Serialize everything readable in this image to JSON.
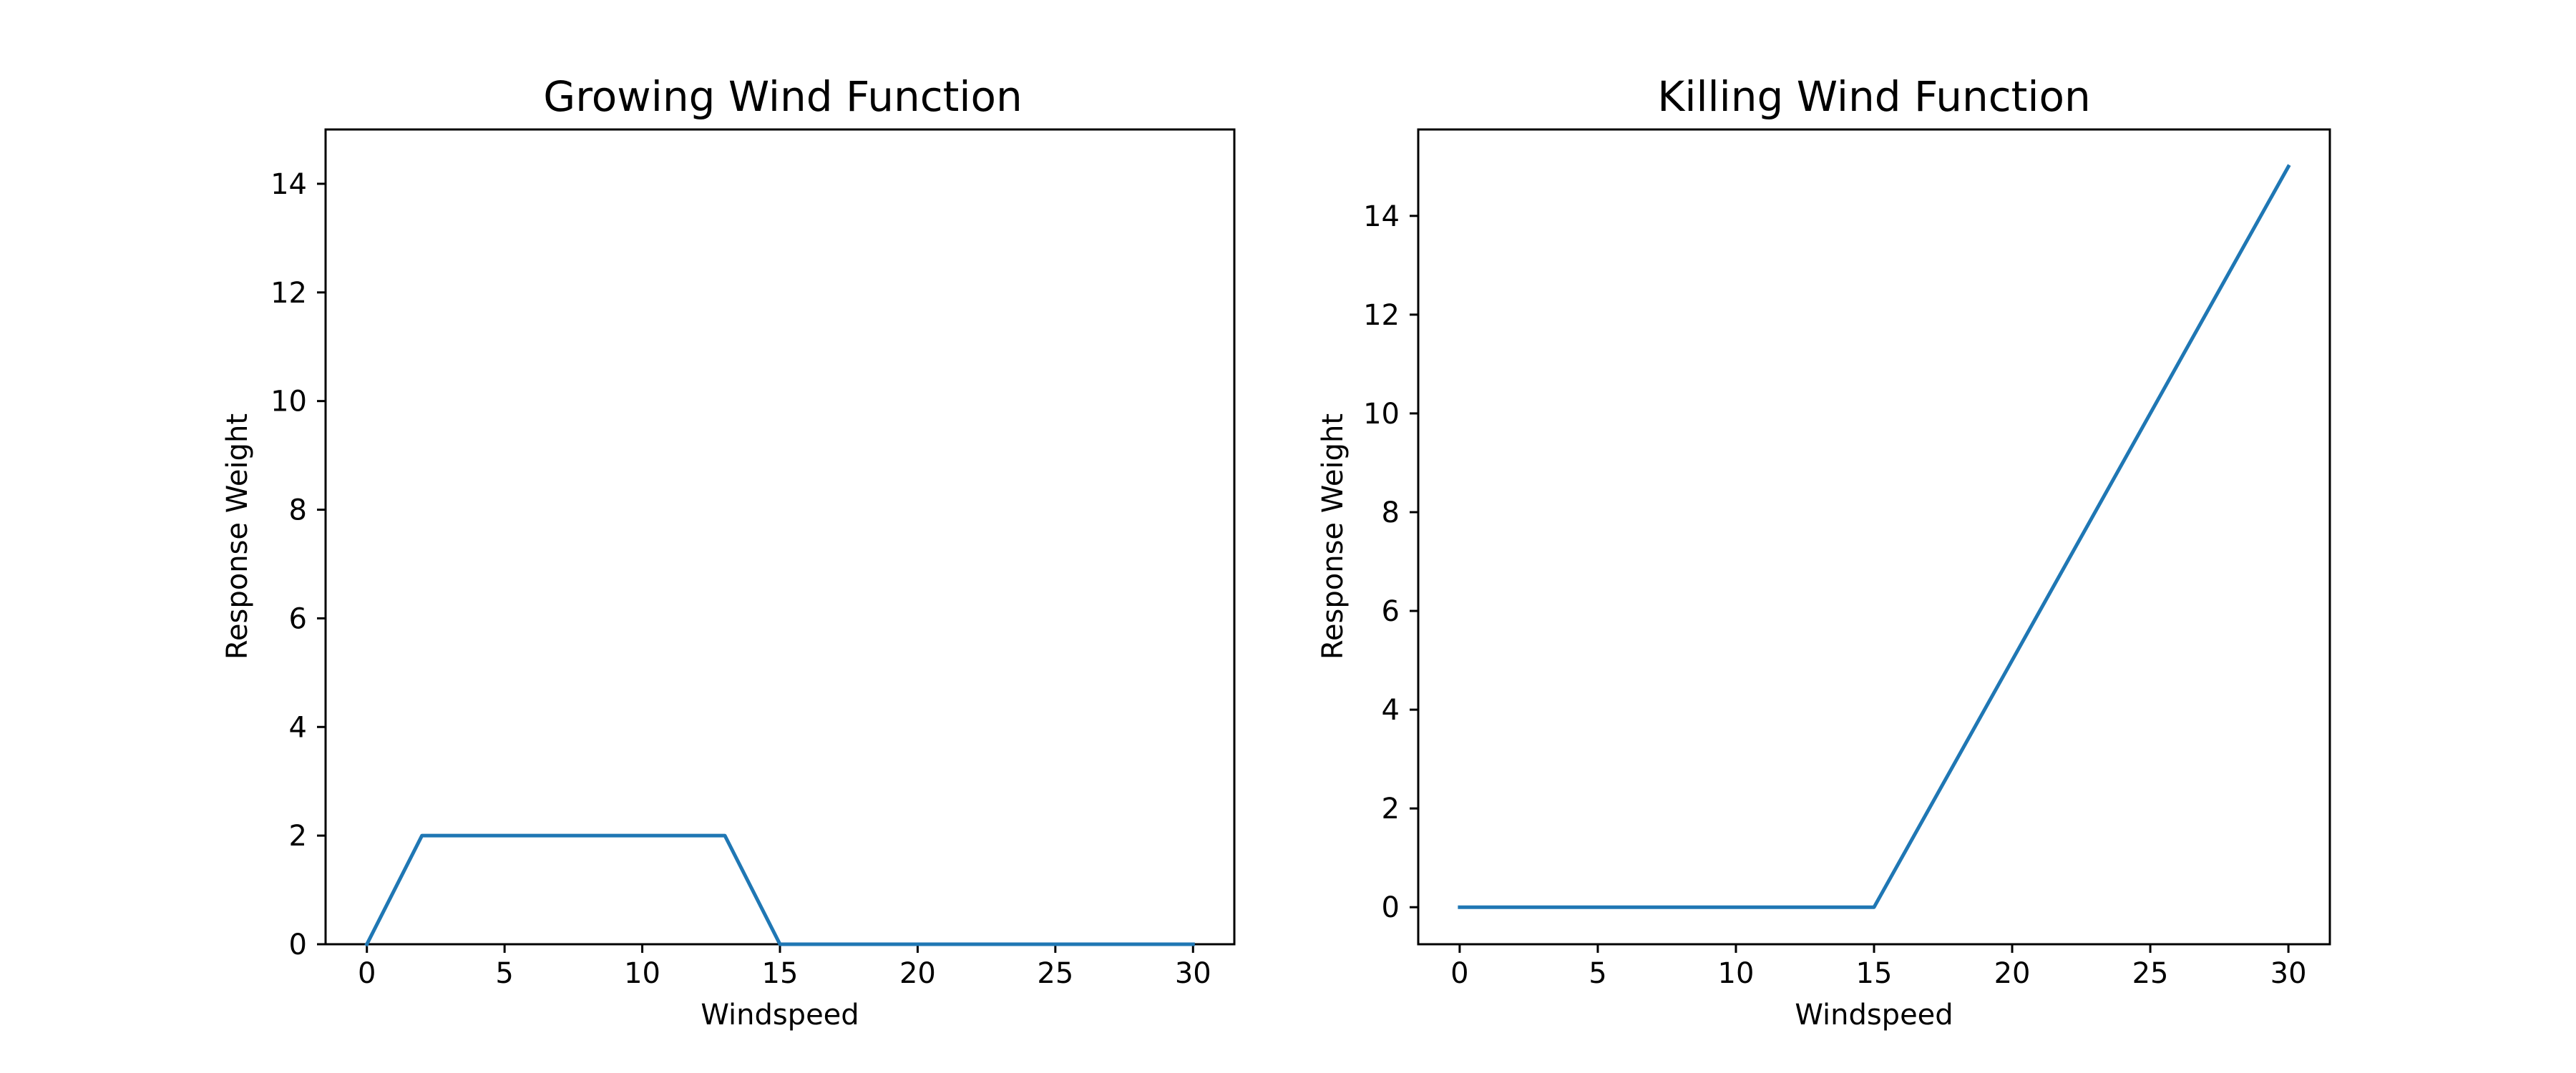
{
  "chart_data": [
    {
      "type": "line",
      "title": "Growing Wind Function",
      "xlabel": "Windspeed",
      "ylabel": "Response Weight",
      "xlim": [
        -1.5,
        31.5
      ],
      "ylim": [
        0,
        15
      ],
      "xticks": [
        0,
        5,
        10,
        15,
        20,
        25,
        30
      ],
      "yticks": [
        0,
        2,
        4,
        6,
        8,
        10,
        12,
        14
      ],
      "grid": false,
      "series": [
        {
          "color": "#1f77b4",
          "x": [
            0,
            2,
            13,
            15,
            30
          ],
          "y": [
            0,
            2,
            2,
            0,
            0
          ]
        }
      ]
    },
    {
      "type": "line",
      "title": "Killing Wind Function",
      "xlabel": "Windspeed",
      "ylabel": "Response Weight",
      "xlim": [
        -1.5,
        31.5
      ],
      "ylim": [
        -0.75,
        15.75
      ],
      "xticks": [
        0,
        5,
        10,
        15,
        20,
        25,
        30
      ],
      "yticks": [
        0,
        2,
        4,
        6,
        8,
        10,
        12,
        14
      ],
      "grid": false,
      "series": [
        {
          "color": "#1f77b4",
          "x": [
            0,
            15,
            30
          ],
          "y": [
            0,
            0,
            15
          ]
        }
      ]
    }
  ]
}
